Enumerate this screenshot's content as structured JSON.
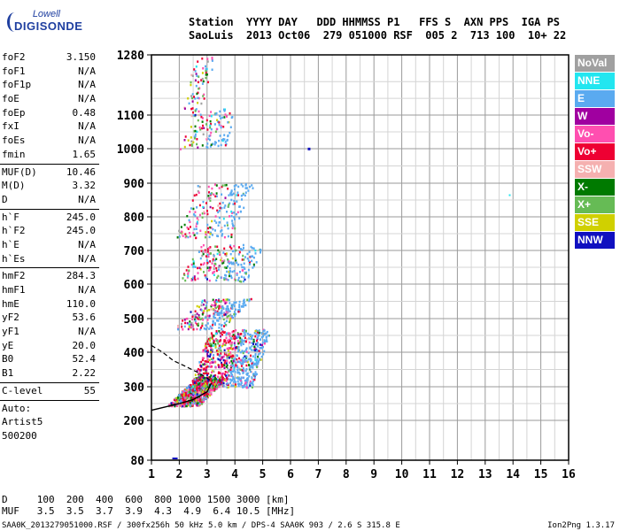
{
  "logo": {
    "line1": "Lowell",
    "line2": "DIGISONDE"
  },
  "header": {
    "labels": "Station  YYYY DAY   DDD HHMMSS P1   FFS S  AXN PPS  IGA PS",
    "values": "SaoLuis  2013 Oct06  279 051000 RSF  005 2  713 100  10+ 22"
  },
  "params": [
    {
      "name": "foF2",
      "value": "3.150"
    },
    {
      "name": "foF1",
      "value": "N/A"
    },
    {
      "name": "foF1p",
      "value": "N/A"
    },
    {
      "name": "foE",
      "value": "N/A"
    },
    {
      "name": "foEp",
      "value": "0.48"
    },
    {
      "name": "fxI",
      "value": "N/A"
    },
    {
      "name": "foEs",
      "value": "N/A"
    },
    {
      "name": "fmin",
      "value": "1.65"
    },
    {
      "sep": true
    },
    {
      "name": "MUF(D)",
      "value": "10.46"
    },
    {
      "name": "M(D)",
      "value": "3.32"
    },
    {
      "name": "D",
      "value": "N/A"
    },
    {
      "sep": true
    },
    {
      "name": "h`F",
      "value": "245.0"
    },
    {
      "name": "h`F2",
      "value": "245.0"
    },
    {
      "name": "h`E",
      "value": "N/A"
    },
    {
      "name": "h`Es",
      "value": "N/A"
    },
    {
      "sep": true
    },
    {
      "name": "hmF2",
      "value": "284.3"
    },
    {
      "name": "hmF1",
      "value": "N/A"
    },
    {
      "name": "hmE",
      "value": "110.0"
    },
    {
      "name": "yF2",
      "value": "53.6"
    },
    {
      "name": "yF1",
      "value": "N/A"
    },
    {
      "name": "yE",
      "value": "20.0"
    },
    {
      "name": "B0",
      "value": "52.4"
    },
    {
      "name": "B1",
      "value": "2.22"
    },
    {
      "sep": true
    },
    {
      "name": "C-level",
      "value": "55"
    },
    {
      "sep": true
    },
    {
      "text": "Auto:"
    },
    {
      "text": "Artist5"
    },
    {
      "text": "500200"
    }
  ],
  "legend": [
    {
      "label": "NoVal",
      "color": "#a0a0a0"
    },
    {
      "label": "NNE",
      "color": "#22e6f0"
    },
    {
      "label": "E",
      "color": "#5aaaf0"
    },
    {
      "label": "W",
      "color": "#a000a0"
    },
    {
      "label": "Vo-",
      "color": "#ff4fb0"
    },
    {
      "label": "Vo+",
      "color": "#ee0033"
    },
    {
      "label": "SSW",
      "color": "#f5b0b0"
    },
    {
      "label": "X-",
      "color": "#007a00"
    },
    {
      "label": "X+",
      "color": "#66bb55"
    },
    {
      "label": "SSE",
      "color": "#d0d000"
    },
    {
      "label": "NNW",
      "color": "#1010c0"
    }
  ],
  "chart_data": {
    "type": "scatter",
    "x_ticks": [
      "1",
      "2",
      "3",
      "4",
      "5",
      "6",
      "7",
      "8",
      "9",
      "10",
      "11",
      "12",
      "13",
      "14",
      "15",
      "16"
    ],
    "y_ticks": [
      "80",
      "200",
      "300",
      "400",
      "500",
      "600",
      "700",
      "800",
      "900",
      "1000",
      "1100",
      "1280"
    ],
    "xlim": [
      1,
      16
    ],
    "ylim": [
      80,
      1280
    ]
  },
  "footer": {
    "line1": "D     100  200  400  600  800 1000 1500 3000 [km]",
    "line2": "MUF   3.5  3.5  3.7  3.9  4.3  4.9  6.4 10.5 [MHz]"
  },
  "fileline": "SAA0K_2013279051000.RSF / 300fx256h 50 kHz 5.0 km / DPS-4 SAA0K 903 / 2.6 S 315.8 E",
  "version": "Ion2Png 1.3.17"
}
